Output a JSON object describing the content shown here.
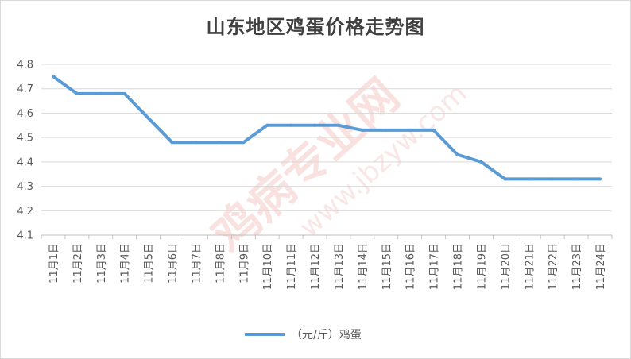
{
  "chart_data": {
    "type": "line",
    "title": "山东地区鸡蛋价格走势图",
    "categories": [
      "11月1日",
      "11月2日",
      "11月3日",
      "11月4日",
      "11月5日",
      "11月6日",
      "11月7日",
      "11月8日",
      "11月9日",
      "11月10日",
      "11月11日",
      "11月12日",
      "11月13日",
      "11月14日",
      "11月15日",
      "11月16日",
      "11月17日",
      "11月18日",
      "11月19日",
      "11月20日",
      "11月21日",
      "11月22日",
      "11月23日",
      "11月24日"
    ],
    "series": [
      {
        "name": "（元/斤）鸡蛋",
        "values": [
          4.75,
          4.68,
          4.68,
          4.68,
          4.58,
          4.48,
          4.48,
          4.48,
          4.48,
          4.55,
          4.55,
          4.55,
          4.55,
          4.53,
          4.53,
          4.53,
          4.53,
          4.43,
          4.4,
          4.33,
          4.33,
          4.33,
          4.33,
          4.33
        ]
      }
    ],
    "ylim": [
      4.1,
      4.8
    ],
    "yticks": [
      "4.1",
      "4.2",
      "4.3",
      "4.4",
      "4.5",
      "4.6",
      "4.7",
      "4.8"
    ],
    "grid": true,
    "legend_position": "bottom",
    "colors": {
      "line": "#5b9bd5",
      "grid": "#d9d9d9",
      "axis_text": "#595959",
      "title": "#404040"
    },
    "watermark": [
      "鸡病专业网",
      "www.jbzyw.com"
    ]
  }
}
